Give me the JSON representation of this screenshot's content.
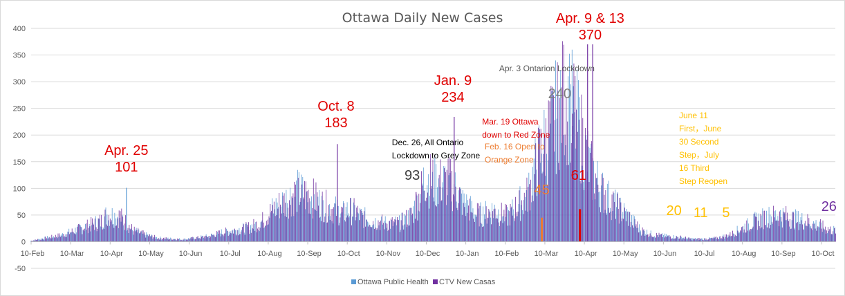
{
  "chart_data": {
    "type": "bar",
    "title": "Ottawa Daily New Cases",
    "xlabel": "",
    "ylabel": "",
    "ylim": [
      -50,
      400
    ],
    "y_ticks": [
      "400",
      "350",
      "300",
      "250",
      "200",
      "150",
      "100",
      "50",
      "0",
      "-50"
    ],
    "x_tick_labels": [
      "10-Feb",
      "10-Mar",
      "10-Apr",
      "10-May",
      "10-Jun",
      "10-Jul",
      "10-Aug",
      "10-Sep",
      "10-Oct",
      "10-Nov",
      "10-Dec",
      "10-Jan",
      "10-Feb",
      "10-Mar",
      "10-Apr",
      "10-May",
      "10-Jun",
      "10-Jul",
      "10-Aug",
      "10-Sep",
      "10-Oct"
    ],
    "x_range_days": [
      0,
      633
    ],
    "grid": true,
    "legend_position": "bottom",
    "series": [
      {
        "name": "Ottawa Public Health",
        "color": "#5b9bd5"
      },
      {
        "name": "CTV New Casas",
        "color": "#7030a0"
      }
    ],
    "series_envelope_days": [
      0,
      25,
      35,
      45,
      55,
      60,
      70,
      75,
      80,
      90,
      100,
      120,
      140,
      150,
      160,
      170,
      180,
      190,
      200,
      210,
      220,
      230,
      240,
      245,
      250,
      255,
      260,
      270,
      280,
      290,
      300,
      305,
      310,
      320,
      330,
      335,
      340,
      345,
      350,
      355,
      360,
      365,
      370,
      375,
      380,
      385,
      390,
      395,
      400,
      405,
      410,
      415,
      420,
      425,
      430,
      435,
      440,
      450,
      460,
      470,
      475,
      480,
      490,
      500,
      510,
      520,
      530,
      540,
      550,
      560,
      570,
      580,
      590,
      600,
      610,
      620,
      630,
      633
    ],
    "series_envelope_values": [
      2,
      15,
      25,
      35,
      45,
      60,
      55,
      40,
      25,
      15,
      8,
      5,
      12,
      20,
      25,
      30,
      40,
      70,
      90,
      110,
      100,
      80,
      70,
      60,
      70,
      65,
      55,
      45,
      40,
      40,
      60,
      95,
      140,
      130,
      130,
      110,
      85,
      75,
      60,
      60,
      65,
      70,
      60,
      55,
      70,
      85,
      100,
      140,
      190,
      220,
      250,
      290,
      320,
      300,
      260,
      210,
      160,
      110,
      80,
      55,
      40,
      25,
      15,
      12,
      10,
      6,
      6,
      8,
      15,
      30,
      45,
      55,
      58,
      50,
      45,
      35,
      25,
      25
    ],
    "highlight_bars": [
      {
        "day": 75,
        "value": 101,
        "series": "Ottawa Public Health"
      },
      {
        "day": 241,
        "value": 183,
        "series": "CTV New Casas"
      },
      {
        "day": 333,
        "value": 234,
        "series": "CTV New Casas"
      },
      {
        "day": 303,
        "value": 93,
        "series": "CTV New Casas"
      },
      {
        "day": 402,
        "value": 45,
        "series": "annotation-orange",
        "color": "#ed7d31"
      },
      {
        "day": 432,
        "value": 61,
        "series": "annotation-red",
        "color": "#e00000"
      },
      {
        "day": 426,
        "value": 240,
        "series": "CTV New Casas"
      },
      {
        "day": 438,
        "value": 370,
        "series": "CTV New Casas"
      },
      {
        "day": 442,
        "value": 370,
        "series": "CTV New Casas"
      }
    ],
    "annotations": [
      {
        "lines": [
          "Apr. 25",
          "101"
        ],
        "color": "#e00000",
        "size": 20,
        "day": 75,
        "y": 224,
        "anchor": "middle"
      },
      {
        "lines": [
          "Oct. 8",
          "183"
        ],
        "color": "#e00000",
        "size": 20,
        "day": 240,
        "y": 160,
        "anchor": "middle"
      },
      {
        "lines": [
          "Dec. 26, All Ontario",
          "Lockdown to Grey Zone"
        ],
        "color": "#000000",
        "size": 12,
        "day": 284,
        "y": 210,
        "anchor": "start"
      },
      {
        "lines": [
          "Jan. 9",
          "234"
        ],
        "color": "#e00000",
        "size": 20,
        "day": 332,
        "y": 123,
        "anchor": "middle"
      },
      {
        "lines": [
          "93"
        ],
        "color": "#404040",
        "size": 20,
        "day": 300,
        "y": 260,
        "anchor": "middle"
      },
      {
        "lines": [
          "Mar. 19 Ottawa",
          "down to Red Zone"
        ],
        "color": "#e00000",
        "size": 12,
        "day": 355,
        "y": 180,
        "anchor": "start"
      },
      {
        "lines": [
          "Feb. 16 Open to",
          "Orange Zone"
        ],
        "color": "#ed7d31",
        "size": 12,
        "day": 357,
        "y": 216,
        "anchor": "start"
      },
      {
        "lines": [
          "45"
        ],
        "color": "#ed7d31",
        "size": 20,
        "day": 402,
        "y": 281,
        "anchor": "middle"
      },
      {
        "lines": [
          "61"
        ],
        "color": "#e00000",
        "size": 20,
        "day": 431,
        "y": 260,
        "anchor": "middle"
      },
      {
        "lines": [
          "240"
        ],
        "color": "#7f7f7f",
        "size": 20,
        "day": 416,
        "y": 142,
        "anchor": "middle"
      },
      {
        "lines": [
          "Apr. 3 Ontarion Lockdown"
        ],
        "color": "#595959",
        "size": 12,
        "day": 406,
        "y": 103,
        "anchor": "middle"
      },
      {
        "lines": [
          "Apr. 9 & 13",
          "370"
        ],
        "color": "#e00000",
        "size": 20,
        "day": 440,
        "y": 33,
        "anchor": "middle"
      },
      {
        "lines": [
          "June 11",
          "First，June",
          "30 Second",
          "Step，July",
          "16 Third",
          "Step Reopen"
        ],
        "color": "#ffc000",
        "size": 12,
        "day": 510,
        "y": 171,
        "anchor": "start"
      },
      {
        "lines": [
          "20"
        ],
        "color": "#ffc000",
        "size": 20,
        "day": 506,
        "y": 311,
        "anchor": "middle"
      },
      {
        "lines": [
          "11"
        ],
        "color": "#ffc000",
        "size": 20,
        "day": 527,
        "y": 314,
        "anchor": "middle"
      },
      {
        "lines": [
          "5"
        ],
        "color": "#ffc000",
        "size": 20,
        "day": 547,
        "y": 314,
        "anchor": "middle"
      },
      {
        "lines": [
          "26"
        ],
        "color": "#7030a0",
        "size": 20,
        "day": 628,
        "y": 305,
        "anchor": "middle"
      }
    ]
  }
}
